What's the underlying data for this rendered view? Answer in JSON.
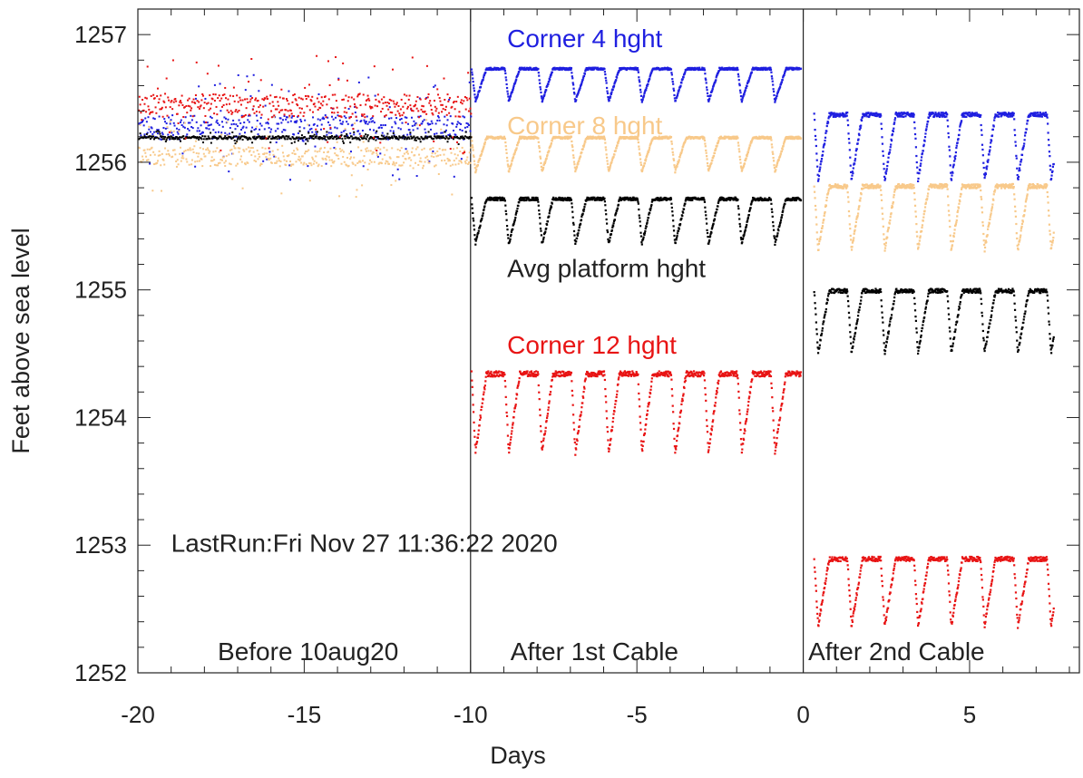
{
  "chart_data": {
    "type": "scatter",
    "title": "",
    "xlabel": "Days",
    "ylabel": "Feet above sea level",
    "xlim": [
      -20,
      8.3
    ],
    "ylim": [
      1252,
      1257.2
    ],
    "x_ticks": [
      -20,
      -15,
      -10,
      -5,
      0,
      5
    ],
    "x_tick_labels": [
      "-20",
      "-15",
      "-10",
      "-5",
      "0",
      "5"
    ],
    "y_ticks": [
      1252,
      1253,
      1254,
      1255,
      1256,
      1257
    ],
    "y_tick_labels": [
      "1252",
      "1253",
      "1254",
      "1255",
      "1256",
      "1257"
    ],
    "grid": false,
    "dividers": [
      -10,
      0
    ],
    "segment_labels": [
      {
        "text": "Before 10aug20",
        "x": -17.6,
        "y": 1252.1
      },
      {
        "text": "After 1st Cable",
        "x": -8.8,
        "y": 1252.1
      },
      {
        "text": "After 2nd Cable",
        "x": 0.15,
        "y": 1252.1
      }
    ],
    "run_label": {
      "text": "LastRun:Fri Nov 27 11:36:22 2020",
      "x": -19.0,
      "y": 1252.95
    },
    "annotations": [
      {
        "text": "Corner  4 hght",
        "x": -8.9,
        "y": 1256.9,
        "color": "#1f1fe0"
      },
      {
        "text": "Corner  8 hght",
        "x": -8.9,
        "y": 1256.22,
        "color": "#f8c98a"
      },
      {
        "text": "Avg platform hght",
        "x": -8.9,
        "y": 1255.1,
        "color": "#222222"
      },
      {
        "text": "Corner 12 hght",
        "x": -8.9,
        "y": 1254.5,
        "color": "#e81414"
      }
    ],
    "series": [
      {
        "name": "Corner  4 hght",
        "color": "#1f1fe0",
        "segments": [
          {
            "x_start": -20,
            "x_end": -10,
            "baseline": 1256.28,
            "noise": 0.32,
            "kind": "flat"
          },
          {
            "x_start": -10,
            "x_end": -0.1,
            "high": 1256.74,
            "low": 1256.45,
            "kind": "cycle"
          },
          {
            "x_start": 0.3,
            "x_end": 7.5,
            "high": 1256.38,
            "low": 1255.8,
            "kind": "cycle"
          }
        ]
      },
      {
        "name": "Corner  8 hght",
        "color": "#f8c98a",
        "segments": [
          {
            "x_start": -20,
            "x_end": -10,
            "baseline": 1256.05,
            "noise": 0.25,
            "kind": "flat"
          },
          {
            "x_start": -10,
            "x_end": -0.1,
            "high": 1256.2,
            "low": 1255.9,
            "kind": "cycle"
          },
          {
            "x_start": 0.3,
            "x_end": 7.5,
            "high": 1255.82,
            "low": 1255.25,
            "kind": "cycle"
          }
        ]
      },
      {
        "name": "Avg platform hght",
        "color": "#000000",
        "segments": [
          {
            "x_start": -20,
            "x_end": -10,
            "baseline": 1256.2,
            "noise": 0.04,
            "kind": "flat"
          },
          {
            "x_start": -10,
            "x_end": -0.1,
            "high": 1255.72,
            "low": 1255.32,
            "kind": "cycle"
          },
          {
            "x_start": 0.3,
            "x_end": 7.5,
            "high": 1255.0,
            "low": 1254.45,
            "kind": "cycle"
          }
        ]
      },
      {
        "name": "Corner 12 hght",
        "color": "#e81414",
        "segments": [
          {
            "x_start": -20,
            "x_end": -10,
            "baseline": 1256.45,
            "noise": 0.3,
            "kind": "flat"
          },
          {
            "x_start": -10,
            "x_end": -0.1,
            "high": 1254.35,
            "low": 1253.65,
            "kind": "cycle"
          },
          {
            "x_start": 0.3,
            "x_end": 7.5,
            "high": 1252.9,
            "low": 1252.3,
            "kind": "cycle"
          }
        ]
      }
    ]
  }
}
